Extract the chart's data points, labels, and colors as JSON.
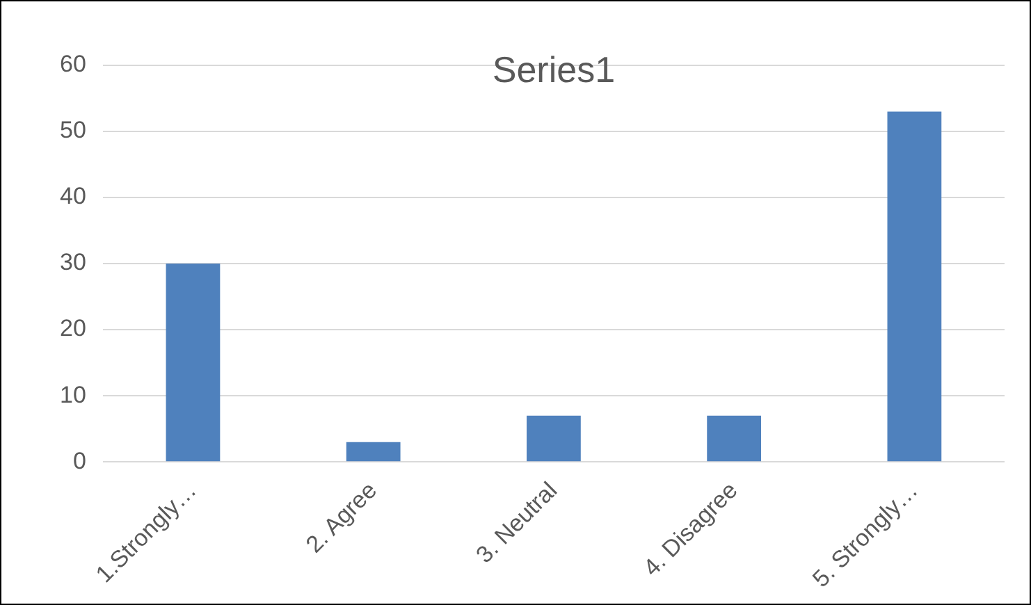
{
  "chart_data": {
    "type": "bar",
    "title": "Series1",
    "categories": [
      "1.Strongly…",
      "2. Agree",
      "3. Neutral",
      "4. Disagree",
      "5. Strongly…"
    ],
    "values": [
      30,
      3,
      7,
      7,
      53
    ],
    "color": "#4f81bd",
    "ylim": [
      0,
      60
    ],
    "yticks": [
      0,
      10,
      20,
      30,
      40,
      50,
      60
    ],
    "grid": "y"
  }
}
